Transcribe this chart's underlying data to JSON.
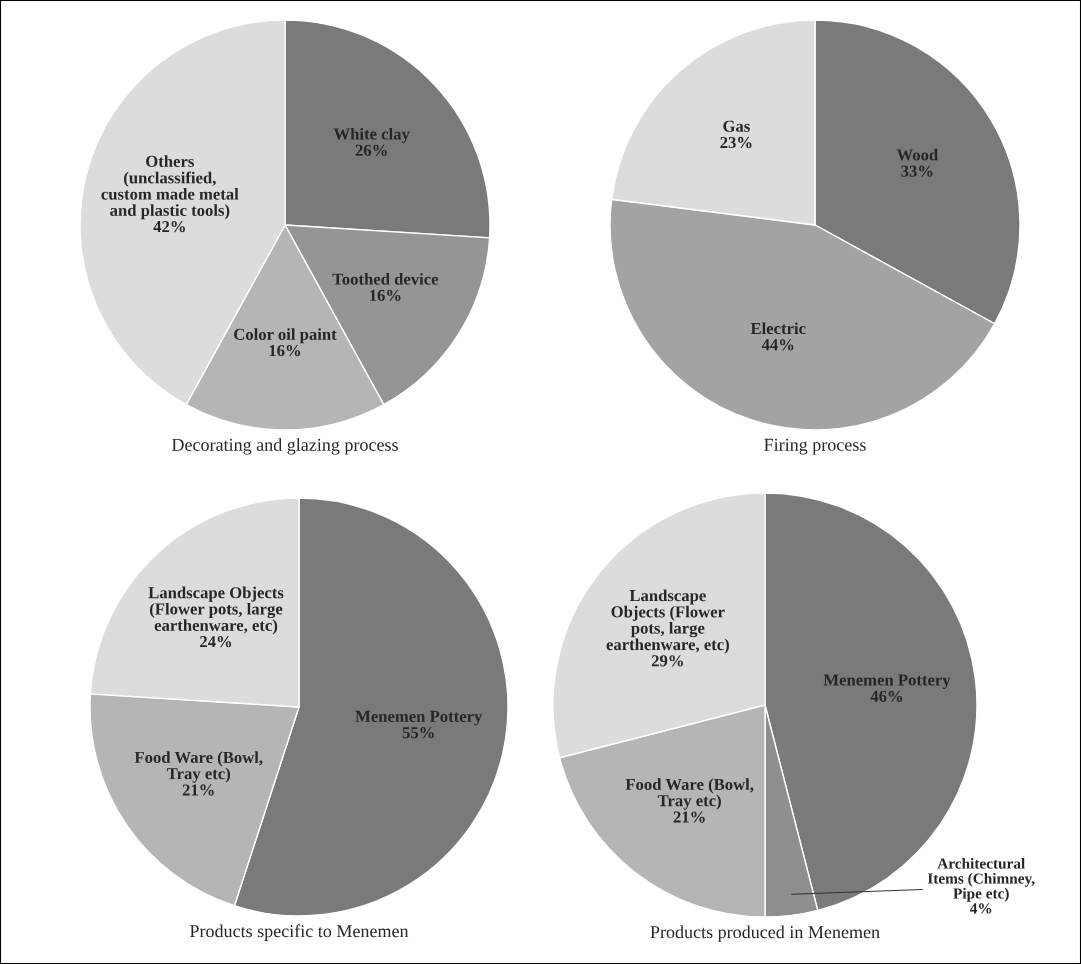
{
  "chart_data": [
    {
      "type": "pie",
      "title": "Decorating and glazing process",
      "categories": [
        "White clay",
        "Toothed device",
        "Color oil paint",
        "Others\n(unclassified,\ncustom made metal\nand plastic tools)"
      ],
      "values": [
        26,
        16,
        16,
        42
      ],
      "value_labels": [
        "26%",
        "16%",
        "16%",
        "42%"
      ],
      "colors": [
        "#7a7a7a",
        "#959595",
        "#b5b5b5",
        "#dcdcdc"
      ]
    },
    {
      "type": "pie",
      "title": "Firing process",
      "categories": [
        "Wood",
        "Electric",
        "Gas"
      ],
      "values": [
        33,
        44,
        23
      ],
      "value_labels": [
        "33%",
        "44%",
        "23%"
      ],
      "colors": [
        "#7a7a7a",
        "#a3a3a3",
        "#dcdcdc"
      ]
    },
    {
      "type": "pie",
      "title": "Products specific to Menemen",
      "categories": [
        "Menemen Pottery",
        "Food Ware (Bowl,\nTray etc)",
        "Landscape Objects\n(Flower pots, large\nearthenware, etc)"
      ],
      "values": [
        55,
        21,
        24
      ],
      "value_labels": [
        "55%",
        "21%",
        "24%"
      ],
      "colors": [
        "#7a7a7a",
        "#b5b5b5",
        "#dcdcdc"
      ]
    },
    {
      "type": "pie",
      "title": "Products produced in Menemen",
      "categories": [
        "Menemen Pottery",
        "Architectural\nItems (Chimney,\nPipe etc)",
        "Food Ware (Bowl,\nTray etc)",
        "Landscape\nObjects (Flower\npots, large\nearthenware, etc)"
      ],
      "values": [
        46,
        4,
        21,
        29
      ],
      "value_labels": [
        "46%",
        "4%",
        "21%",
        "29%"
      ],
      "colors": [
        "#7a7a7a",
        "#8f8f8f",
        "#b5b5b5",
        "#dcdcdc"
      ]
    }
  ]
}
